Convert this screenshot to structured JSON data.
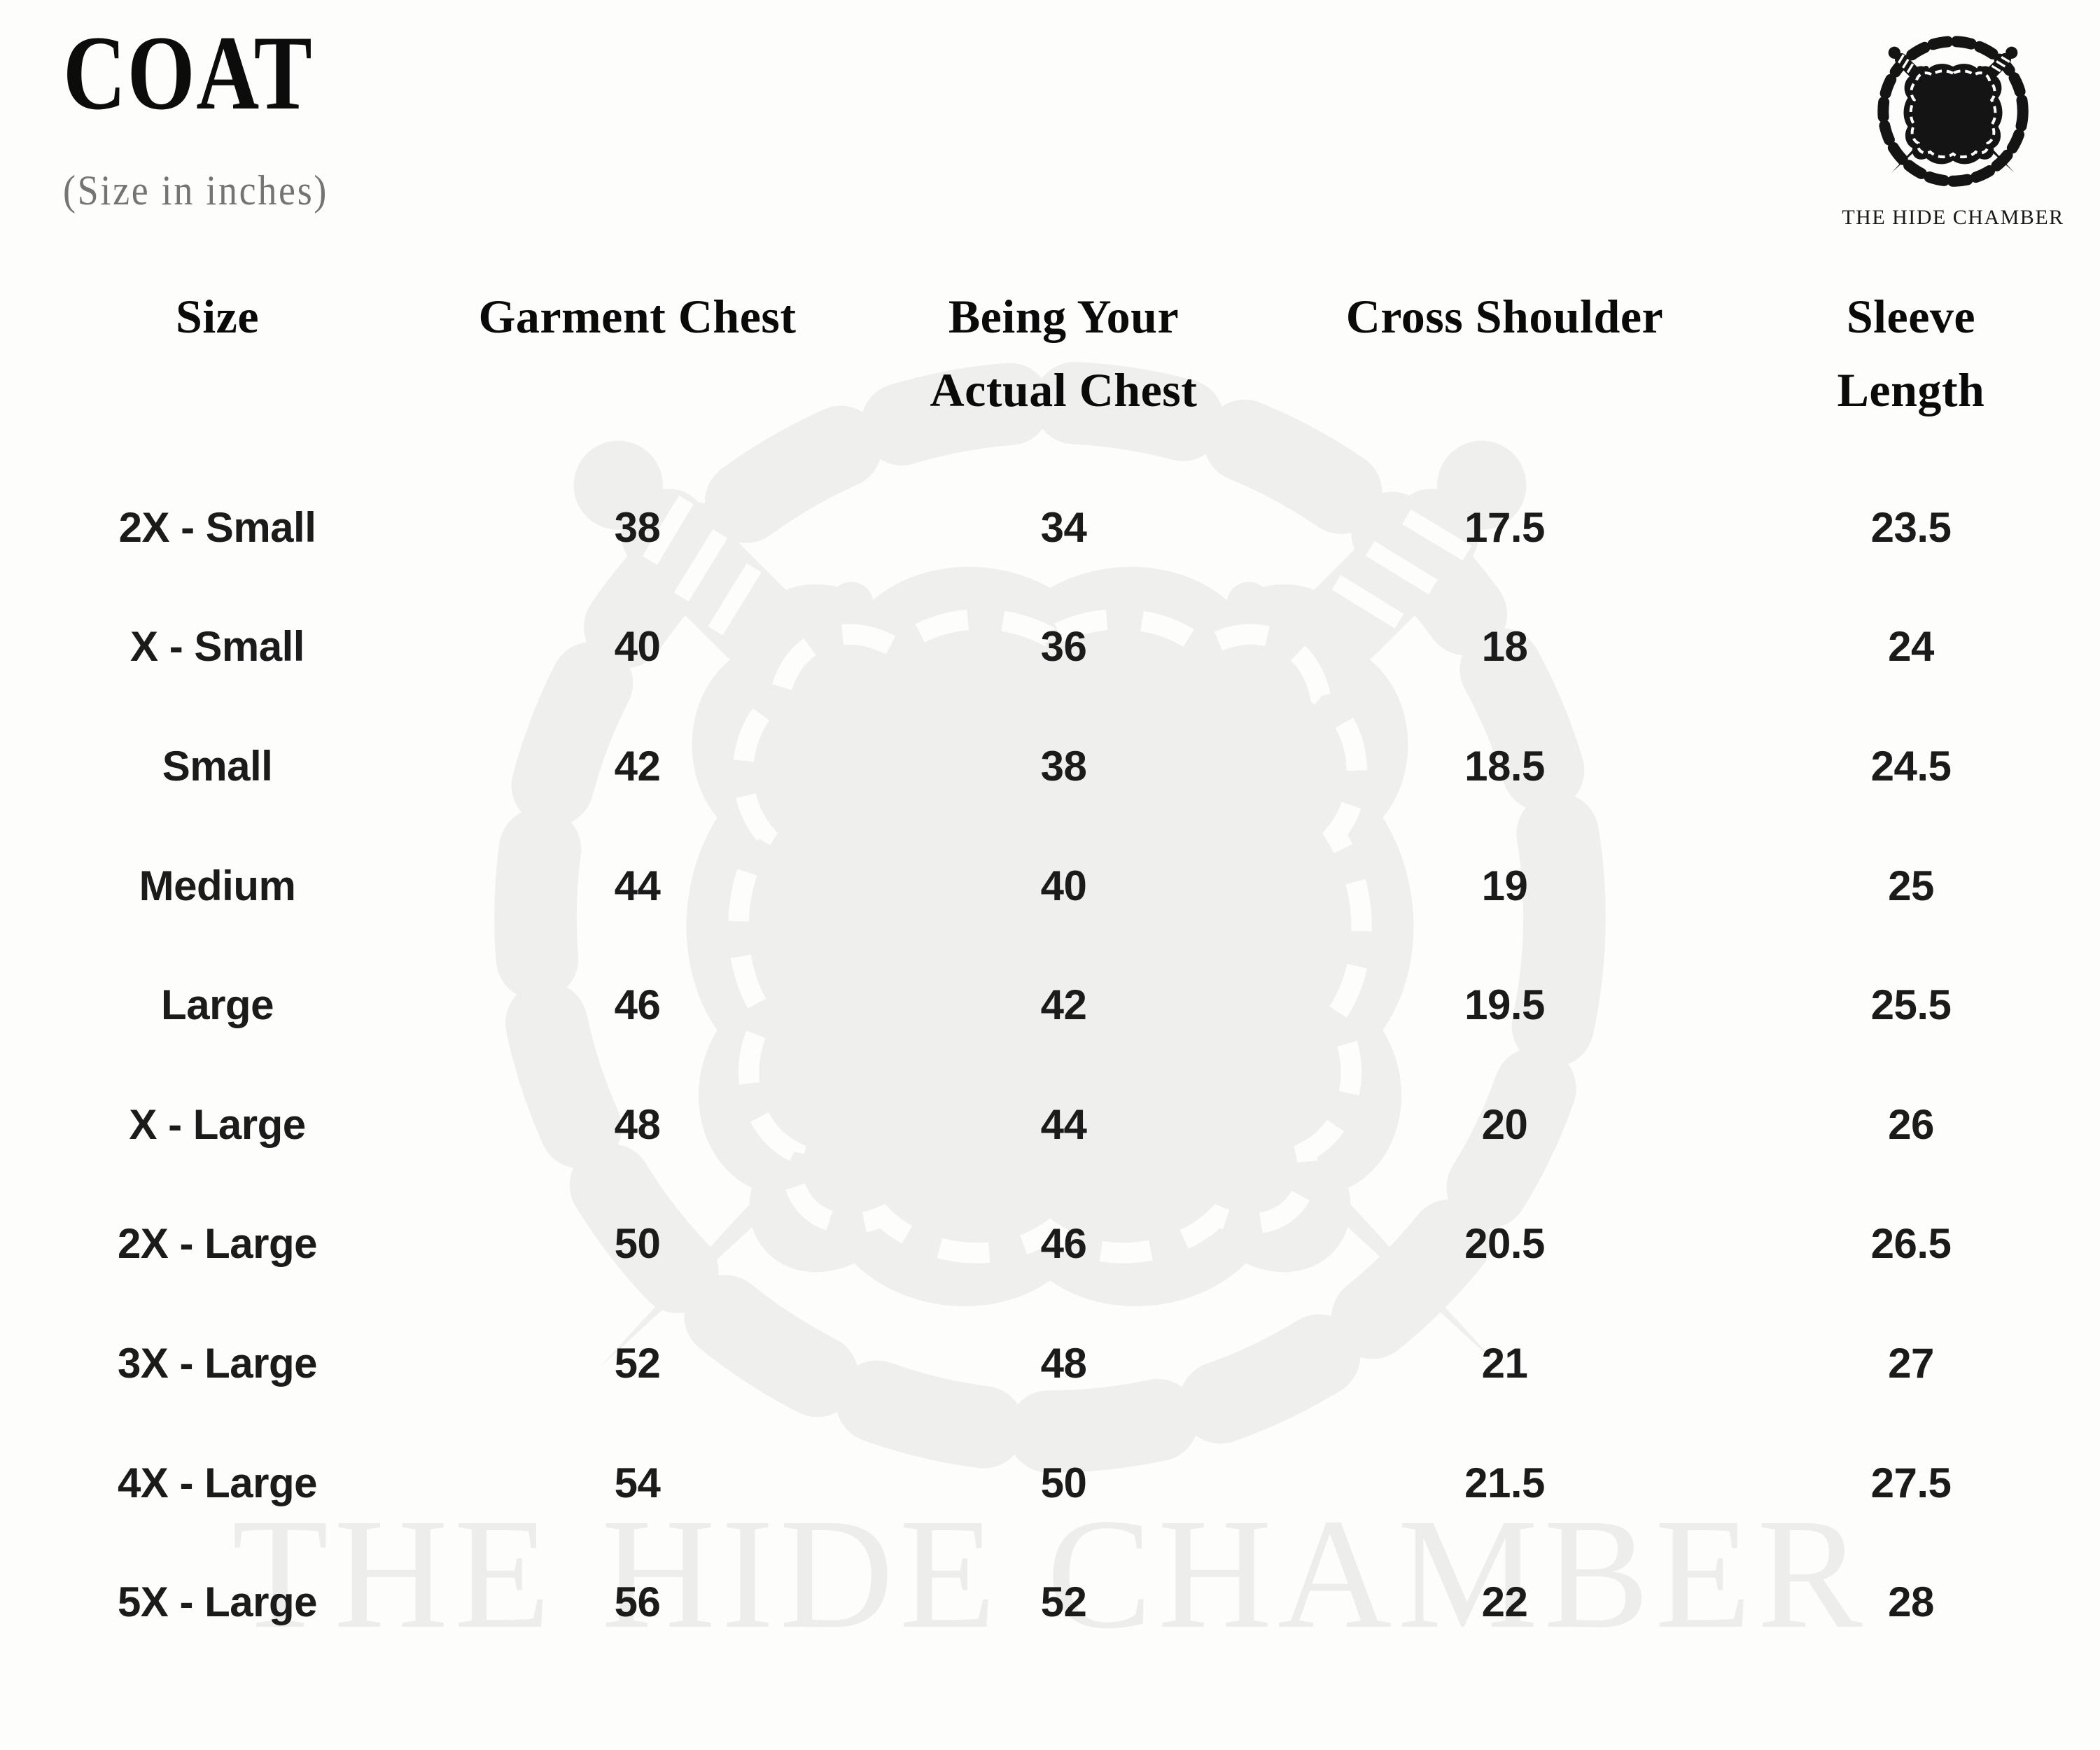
{
  "page": {
    "title": "COAT",
    "subtitle": "(Size in inches)"
  },
  "brand": {
    "name": "THE HIDE CHAMBER",
    "logo_icon": "crossed-daggers-chain-hide-crest",
    "watermark_text": "THE HIDE CHAMBER"
  },
  "colors": {
    "background": "#fdfdfc",
    "text_primary": "#1b1b1b",
    "heading": "#0a0a0a",
    "subtitle_gray": "#747474",
    "watermark_gray": "#f0efee"
  },
  "table": {
    "fields": [
      "size",
      "garment_chest",
      "actual_chest",
      "cross_shoulder",
      "sleeve_length"
    ],
    "columns": [
      [
        "Size"
      ],
      [
        "Garment Chest"
      ],
      [
        "Being Your",
        "Actual Chest"
      ],
      [
        "Cross Shoulder"
      ],
      [
        "Sleeve",
        "Length"
      ]
    ],
    "rows": [
      [
        "2X - Small",
        "38",
        "34",
        "17.5",
        "23.5"
      ],
      [
        "X - Small",
        "40",
        "36",
        "18",
        "24"
      ],
      [
        "Small",
        "42",
        "38",
        "18.5",
        "24.5"
      ],
      [
        "Medium",
        "44",
        "40",
        "19",
        "25"
      ],
      [
        "Large",
        "46",
        "42",
        "19.5",
        "25.5"
      ],
      [
        "X - Large",
        "48",
        "44",
        "20",
        "26"
      ],
      [
        "2X - Large",
        "50",
        "46",
        "20.5",
        "26.5"
      ],
      [
        "3X - Large",
        "52",
        "48",
        "21",
        "27"
      ],
      [
        "4X - Large",
        "54",
        "50",
        "21.5",
        "27.5"
      ],
      [
        "5X - Large",
        "56",
        "52",
        "22",
        "28"
      ]
    ]
  }
}
